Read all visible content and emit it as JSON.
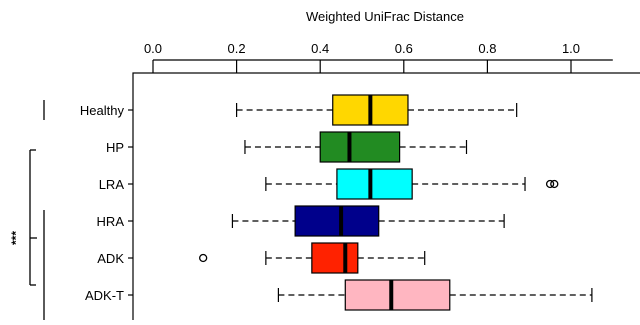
{
  "chart_data": {
    "type": "boxplot",
    "orientation": "horizontal",
    "xlabel": "Weighted UniFrac Distance",
    "xlim": [
      -0.05,
      1.1
    ],
    "ticks": [
      {
        "value": 0.0,
        "label": "0.0"
      },
      {
        "value": 0.2,
        "label": "0.2"
      },
      {
        "value": 0.4,
        "label": "0.4"
      },
      {
        "value": 0.6,
        "label": "0.6"
      },
      {
        "value": 0.8,
        "label": "0.8"
      },
      {
        "value": 1.0,
        "label": "1.0"
      }
    ],
    "categories": [
      "Healthy",
      "HP",
      "LRA",
      "HRA",
      "ADK",
      "ADK-T"
    ],
    "boxes": [
      {
        "name": "Healthy",
        "whisker_low": 0.2,
        "q1": 0.43,
        "median": 0.52,
        "q3": 0.61,
        "whisker_high": 0.87,
        "outliers": [],
        "color": "#FFD700"
      },
      {
        "name": "HP",
        "whisker_low": 0.22,
        "q1": 0.4,
        "median": 0.47,
        "q3": 0.59,
        "whisker_high": 0.75,
        "outliers": [],
        "color": "#228B22"
      },
      {
        "name": "LRA",
        "whisker_low": 0.27,
        "q1": 0.44,
        "median": 0.52,
        "q3": 0.62,
        "whisker_high": 0.89,
        "outliers": [
          0.95,
          0.96
        ],
        "color": "#00FFFF"
      },
      {
        "name": "HRA",
        "whisker_low": 0.19,
        "q1": 0.34,
        "median": 0.45,
        "q3": 0.54,
        "whisker_high": 0.84,
        "outliers": [],
        "color": "#00008B"
      },
      {
        "name": "ADK",
        "whisker_low": 0.27,
        "q1": 0.38,
        "median": 0.46,
        "q3": 0.49,
        "whisker_high": 0.65,
        "outliers": [
          0.12
        ],
        "color": "#FF2200"
      },
      {
        "name": "ADK-T",
        "whisker_low": 0.3,
        "q1": 0.46,
        "median": 0.57,
        "q3": 0.71,
        "whisker_high": 1.05,
        "outliers": [],
        "color": "#FFB6C1"
      }
    ],
    "significance": {
      "label": "***",
      "groups": [
        "Healthy"
      ],
      "vs": [
        "HP",
        "LRA",
        "HRA",
        "ADK",
        "ADK-T"
      ]
    },
    "grid": false
  }
}
